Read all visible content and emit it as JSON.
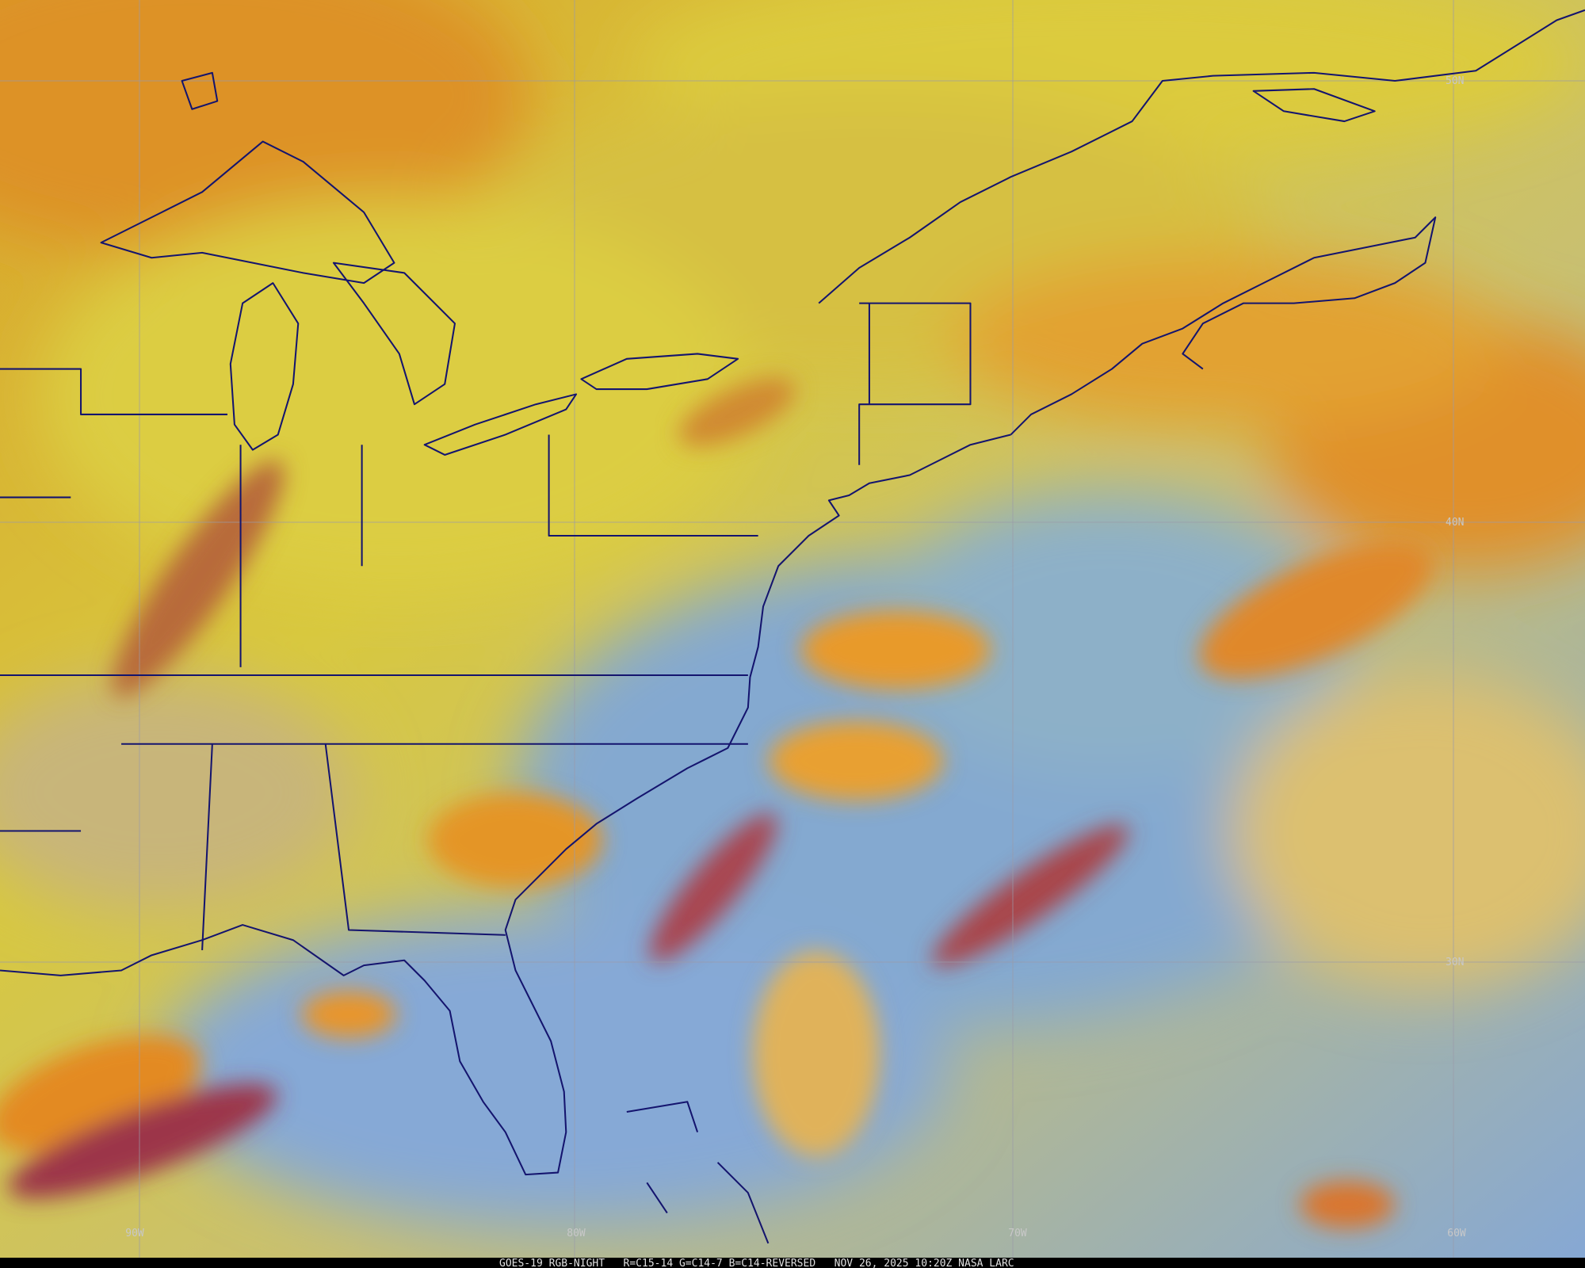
{
  "map": {
    "lat_labels": [
      "50N",
      "40N",
      "30N"
    ],
    "lon_labels": [
      "90W",
      "80W",
      "70W",
      "60W"
    ],
    "caption": "GOES-19 RGB-NIGHT   R=C15-14 G=C14-7 B=C14-REVERSED   NOV 26, 2025 10:20Z NASA LARC"
  }
}
